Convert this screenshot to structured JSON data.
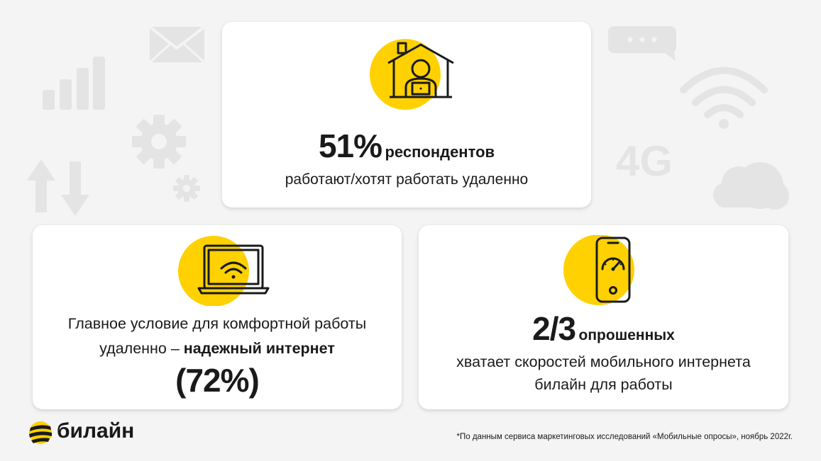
{
  "brand": {
    "name": "билайн",
    "accent": "#ffd100",
    "text_color": "#1a1a1a"
  },
  "background_icons": [
    "signal-bars-icon",
    "mail-icon",
    "gear-icon",
    "small-gear-icon",
    "arrows-updown-icon",
    "chat-bubble-icon",
    "wifi-icon",
    "text-4g",
    "cloud-icon"
  ],
  "bg_4g_label": "4G",
  "card_top": {
    "icon": "house-remote-worker-icon",
    "stat": "51%",
    "stat_suffix": "респондентов",
    "line": "работают/хотят работать удаленно"
  },
  "card_left": {
    "icon": "laptop-wifi-icon",
    "line1": "Главное условие для комфортной работы",
    "line2_regular": "удаленно – ",
    "line2_bold": "надежный интернет",
    "stat": "(72%)"
  },
  "card_right": {
    "icon": "phone-speedometer-icon",
    "stat": "2/3",
    "stat_suffix": "опрошенных",
    "line1": "хватает скоростей мобильного интернета",
    "line2": "билайн для работы"
  },
  "footer": {
    "note": "*По данным сервиса маркетинговых исследований «Мобильные опросы», ноябрь 2022г."
  }
}
